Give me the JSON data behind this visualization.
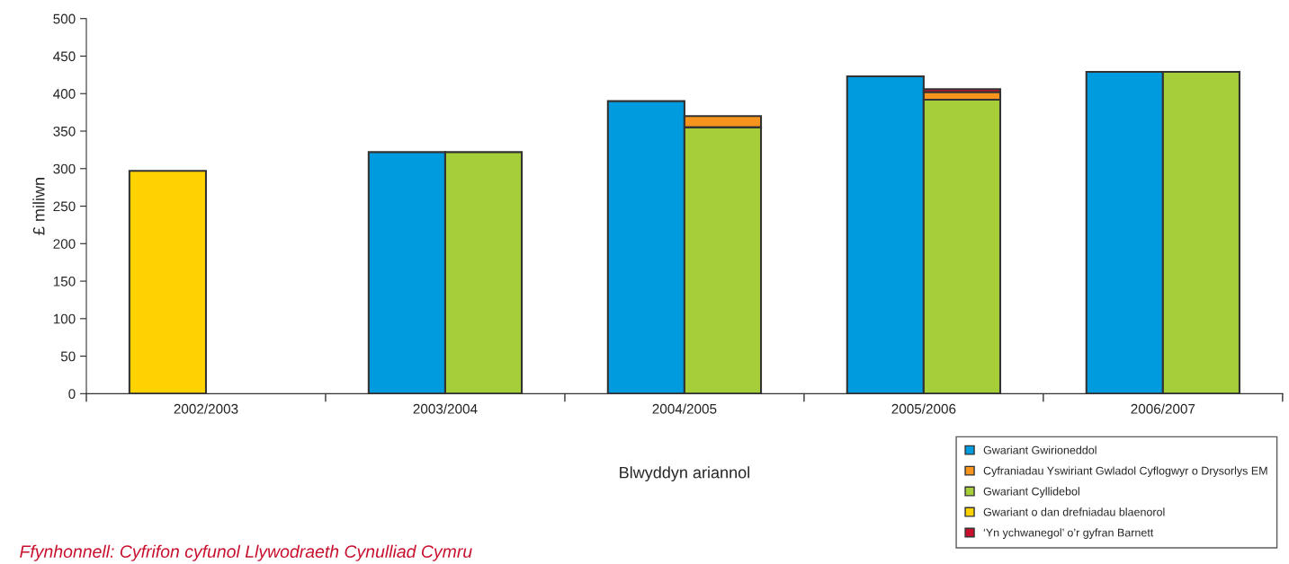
{
  "chart_data": {
    "type": "bar",
    "ylabel": "£ miliwn",
    "xlabel": "Blwyddyn ariannol",
    "categories": [
      "2002/2003",
      "2003/2004",
      "2004/2005",
      "2005/2006",
      "2006/2007"
    ],
    "series": [
      {
        "name": "Gwariant Gwirioneddol",
        "color": "#009ade",
        "values": [
          null,
          322,
          390,
          423,
          429
        ]
      },
      {
        "name": "Cyfraniadau Yswiriant Gwladol Cyflogwyr o Drysorlys EM",
        "color": "#f7941d",
        "base": [
          null,
          null,
          355,
          392,
          null
        ],
        "values": [
          null,
          null,
          15,
          10,
          null
        ]
      },
      {
        "name": "Gwariant Cyllidebol",
        "color": "#a6ce39",
        "values": [
          null,
          322,
          355,
          392,
          429
        ]
      },
      {
        "name": "Gwariant o dan drefniadau blaenorol",
        "color": "#ffd200",
        "values": [
          297,
          null,
          null,
          null,
          null
        ]
      },
      {
        "name": "‘Yn ychwanegol’ o’r gyfran Barnett",
        "color": "#c8102e",
        "base": [
          null,
          null,
          null,
          402,
          null
        ],
        "values": [
          null,
          null,
          null,
          4,
          null
        ]
      }
    ],
    "ylim": [
      0,
      500
    ],
    "yticks": [
      0,
      50,
      100,
      150,
      200,
      250,
      300,
      350,
      400,
      450,
      500
    ],
    "grid": false,
    "legend": "bottom right",
    "annotations": [
      "Ffynhonnell: Cyfrifon cyfunol Llywodraeth Cynulliad Cymru"
    ]
  }
}
